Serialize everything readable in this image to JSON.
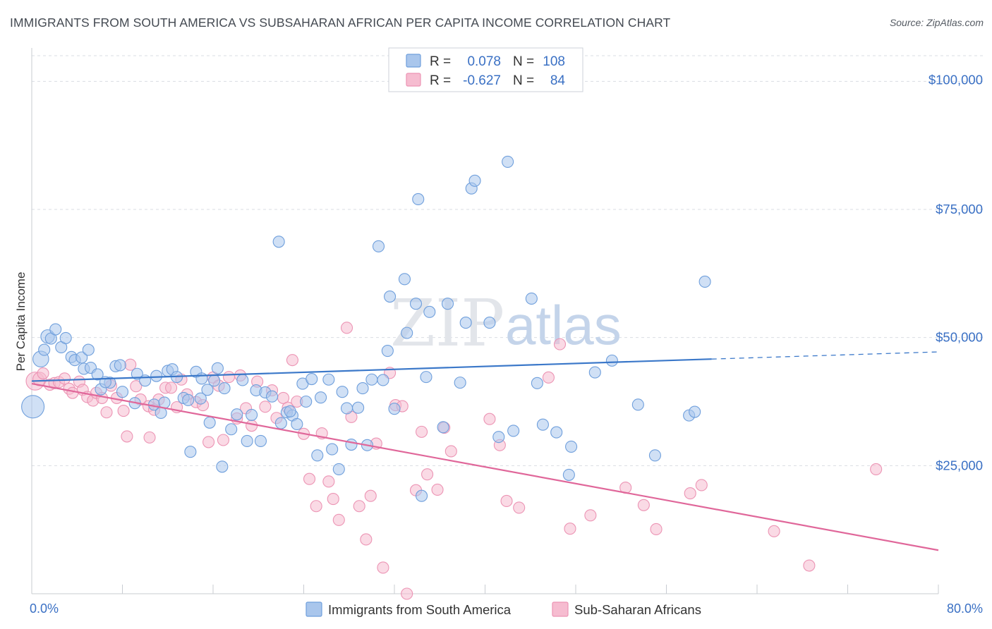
{
  "title": "IMMIGRANTS FROM SOUTH AMERICA VS SUBSAHARAN AFRICAN PER CAPITA INCOME CORRELATION CHART",
  "source": "Source: ZipAtlas.com",
  "watermark": {
    "zip": "ZIP",
    "atlas": "atlas"
  },
  "colors": {
    "blue": "#3b78c9",
    "blue_fill": "#a9c6ec",
    "blue_stroke": "#6f9fdc",
    "pink": "#e0679a",
    "pink_fill": "#f6bcd0",
    "pink_stroke": "#ec94b4",
    "grid": "#d9dde3",
    "axis_text": "#3a70c4"
  },
  "legend": {
    "series": [
      {
        "r_label": "R =",
        "r_value": "0.078",
        "n_label": "N =",
        "n_value": "108"
      },
      {
        "r_label": "R =",
        "r_value": "-0.627",
        "n_label": "N =",
        "n_value": "84"
      }
    ]
  },
  "chart_data": {
    "type": "scatter",
    "title": "IMMIGRANTS FROM SOUTH AMERICA VS SUBSAHARAN AFRICAN PER CAPITA INCOME CORRELATION CHART",
    "xlabel": "",
    "ylabel": "Per Capita Income",
    "xlim": [
      0,
      80
    ],
    "ylim": [
      0,
      105000
    ],
    "x_tick_labels": [
      "0.0%",
      "80.0%"
    ],
    "y_ticks": [
      25000,
      50000,
      75000,
      100000
    ],
    "y_tick_labels": [
      "$25,000",
      "$50,000",
      "$75,000",
      "$100,000"
    ],
    "series": [
      {
        "name": "Immigrants from South America",
        "color": "blue",
        "r": 0.078,
        "n": 108,
        "trend": {
          "x0": 0,
          "y0": 41500,
          "x1": 60,
          "y1": 45800,
          "dash_to_x": 80,
          "dash_y": 47200
        },
        "points": [
          [
            0.1,
            36500,
            20
          ],
          [
            0.8,
            45800,
            14
          ],
          [
            1.1,
            47600,
            10
          ],
          [
            1.4,
            50200,
            12
          ],
          [
            1.7,
            49800,
            10
          ],
          [
            2.1,
            51600,
            10
          ],
          [
            2.6,
            48100,
            10
          ],
          [
            3.0,
            49900,
            10
          ],
          [
            3.5,
            46200,
            10
          ],
          [
            3.8,
            45600,
            10
          ],
          [
            4.4,
            46100,
            10
          ],
          [
            5.0,
            47600,
            10
          ],
          [
            4.6,
            43900,
            10
          ],
          [
            5.2,
            44100,
            10
          ],
          [
            5.8,
            42800,
            10
          ],
          [
            6.1,
            39900,
            10
          ],
          [
            6.9,
            41200,
            10
          ],
          [
            6.5,
            41300,
            10
          ],
          [
            7.4,
            44400,
            10
          ],
          [
            7.8,
            44600,
            10
          ],
          [
            8.0,
            39400,
            10
          ],
          [
            9.3,
            42900,
            10
          ],
          [
            9.1,
            37200,
            10
          ],
          [
            10.0,
            41600,
            10
          ],
          [
            10.8,
            36900,
            10
          ],
          [
            11.4,
            35300,
            10
          ],
          [
            11.7,
            37300,
            10
          ],
          [
            12.0,
            43500,
            10
          ],
          [
            12.4,
            43800,
            10
          ],
          [
            12.8,
            42300,
            10
          ],
          [
            13.4,
            38200,
            10
          ],
          [
            13.8,
            37800,
            10
          ],
          [
            14.0,
            27700,
            10
          ],
          [
            14.5,
            43300,
            10
          ],
          [
            15.0,
            42000,
            10
          ],
          [
            15.5,
            39800,
            10
          ],
          [
            15.7,
            33400,
            10
          ],
          [
            16.1,
            41600,
            10
          ],
          [
            16.4,
            44000,
            10
          ],
          [
            17.0,
            40100,
            10
          ],
          [
            16.8,
            24800,
            10
          ],
          [
            17.6,
            32100,
            10
          ],
          [
            18.1,
            35000,
            10
          ],
          [
            18.6,
            41700,
            10
          ],
          [
            19.0,
            29800,
            10
          ],
          [
            19.4,
            34900,
            10
          ],
          [
            19.8,
            39700,
            10
          ],
          [
            20.2,
            29800,
            10
          ],
          [
            20.6,
            39300,
            10
          ],
          [
            21.2,
            38500,
            10
          ],
          [
            22.0,
            33300,
            10
          ],
          [
            21.8,
            68700,
            10
          ],
          [
            22.5,
            35400,
            10
          ],
          [
            23.0,
            34800,
            10
          ],
          [
            23.4,
            33100,
            10
          ],
          [
            23.9,
            41000,
            10
          ],
          [
            24.7,
            41900,
            10
          ],
          [
            25.2,
            27000,
            10
          ],
          [
            25.5,
            38300,
            10
          ],
          [
            26.2,
            41800,
            10
          ],
          [
            26.5,
            28200,
            10
          ],
          [
            27.1,
            24300,
            10
          ],
          [
            27.4,
            39400,
            10
          ],
          [
            27.8,
            36200,
            10
          ],
          [
            28.2,
            29100,
            10
          ],
          [
            28.8,
            36300,
            10
          ],
          [
            29.2,
            40100,
            10
          ],
          [
            29.6,
            29000,
            10
          ],
          [
            30.0,
            41800,
            10
          ],
          [
            30.6,
            67800,
            10
          ],
          [
            31.0,
            41700,
            10
          ],
          [
            31.4,
            47400,
            10
          ],
          [
            31.6,
            58000,
            10
          ],
          [
            32.0,
            36100,
            10
          ],
          [
            32.9,
            61400,
            10
          ],
          [
            33.1,
            50900,
            10
          ],
          [
            33.9,
            56600,
            10
          ],
          [
            34.1,
            77000,
            10
          ],
          [
            34.4,
            19100,
            10
          ],
          [
            34.8,
            42300,
            10
          ],
          [
            35.1,
            55000,
            10
          ],
          [
            36.3,
            32500,
            10
          ],
          [
            36.7,
            56600,
            10
          ],
          [
            37.8,
            41200,
            10
          ],
          [
            38.3,
            52900,
            10
          ],
          [
            38.8,
            79100,
            10
          ],
          [
            39.1,
            80600,
            10
          ],
          [
            40.4,
            52900,
            10
          ],
          [
            41.2,
            30600,
            10
          ],
          [
            42.0,
            84300,
            10
          ],
          [
            42.5,
            31800,
            10
          ],
          [
            44.1,
            57600,
            10
          ],
          [
            44.6,
            41100,
            10
          ],
          [
            45.1,
            33000,
            10
          ],
          [
            46.3,
            31500,
            10
          ],
          [
            47.4,
            23200,
            10
          ],
          [
            47.6,
            28700,
            10
          ],
          [
            49.7,
            43200,
            10
          ],
          [
            51.2,
            45500,
            10
          ],
          [
            53.5,
            36900,
            10
          ],
          [
            55.0,
            27000,
            10
          ],
          [
            58.0,
            34800,
            10
          ],
          [
            58.5,
            35500,
            10
          ],
          [
            59.4,
            60900,
            10
          ],
          [
            22.8,
            35600,
            10
          ],
          [
            24.2,
            37500,
            10
          ],
          [
            14.9,
            38100,
            10
          ],
          [
            11.0,
            42500,
            10
          ]
        ]
      },
      {
        "name": "Sub-Saharan Africans",
        "color": "pink",
        "r": -0.627,
        "n": 84,
        "trend": {
          "x0": 0,
          "y0": 41000,
          "x1": 80,
          "y1": 8500
        },
        "points": [
          [
            0.3,
            41500,
            16
          ],
          [
            0.7,
            41900,
            12
          ],
          [
            1.0,
            43000,
            10
          ],
          [
            1.6,
            40800,
            10
          ],
          [
            2.0,
            41100,
            10
          ],
          [
            2.4,
            41300,
            10
          ],
          [
            2.9,
            42000,
            10
          ],
          [
            3.3,
            40000,
            10
          ],
          [
            3.6,
            39200,
            10
          ],
          [
            4.2,
            41400,
            10
          ],
          [
            4.5,
            39800,
            10
          ],
          [
            4.9,
            38400,
            10
          ],
          [
            5.4,
            37700,
            10
          ],
          [
            5.7,
            39200,
            10
          ],
          [
            6.2,
            38200,
            10
          ],
          [
            6.6,
            35400,
            10
          ],
          [
            7.0,
            40600,
            10
          ],
          [
            7.5,
            38200,
            10
          ],
          [
            8.1,
            35700,
            10
          ],
          [
            8.4,
            30700,
            10
          ],
          [
            8.7,
            44700,
            10
          ],
          [
            9.2,
            40500,
            10
          ],
          [
            9.6,
            37900,
            10
          ],
          [
            10.3,
            36600,
            10
          ],
          [
            10.4,
            30500,
            10
          ],
          [
            10.8,
            35900,
            10
          ],
          [
            11.2,
            37900,
            10
          ],
          [
            11.8,
            40200,
            10
          ],
          [
            12.3,
            40200,
            10
          ],
          [
            12.8,
            36400,
            10
          ],
          [
            13.2,
            41800,
            10
          ],
          [
            13.7,
            38900,
            10
          ],
          [
            14.5,
            37400,
            10
          ],
          [
            15.1,
            36800,
            10
          ],
          [
            15.6,
            29600,
            10
          ],
          [
            16.0,
            42200,
            10
          ],
          [
            16.5,
            40600,
            10
          ],
          [
            16.9,
            30000,
            10
          ],
          [
            17.4,
            42300,
            10
          ],
          [
            18.1,
            34200,
            10
          ],
          [
            18.4,
            42600,
            10
          ],
          [
            18.9,
            36200,
            10
          ],
          [
            19.4,
            32800,
            10
          ],
          [
            19.9,
            41400,
            10
          ],
          [
            20.6,
            36500,
            10
          ],
          [
            21.2,
            39700,
            10
          ],
          [
            21.6,
            34300,
            10
          ],
          [
            22.2,
            38200,
            10
          ],
          [
            22.6,
            36300,
            10
          ],
          [
            23.0,
            45600,
            10
          ],
          [
            23.4,
            37500,
            10
          ],
          [
            24.0,
            31200,
            10
          ],
          [
            24.5,
            22400,
            10
          ],
          [
            25.1,
            17100,
            10
          ],
          [
            25.6,
            31300,
            10
          ],
          [
            26.2,
            21900,
            10
          ],
          [
            26.6,
            18500,
            10
          ],
          [
            27.1,
            14400,
            10
          ],
          [
            27.8,
            51900,
            10
          ],
          [
            28.2,
            34500,
            10
          ],
          [
            28.9,
            17100,
            10
          ],
          [
            29.5,
            10600,
            10
          ],
          [
            29.9,
            19100,
            10
          ],
          [
            30.4,
            29300,
            10
          ],
          [
            31.0,
            5100,
            10
          ],
          [
            31.6,
            43100,
            10
          ],
          [
            32.1,
            36800,
            10
          ],
          [
            32.7,
            36600,
            10
          ],
          [
            33.1,
            0,
            10
          ],
          [
            33.9,
            20200,
            10
          ],
          [
            34.4,
            31600,
            10
          ],
          [
            34.9,
            23300,
            10
          ],
          [
            35.8,
            20300,
            10
          ],
          [
            36.4,
            32400,
            10
          ],
          [
            37.0,
            27800,
            10
          ],
          [
            40.4,
            34100,
            10
          ],
          [
            41.3,
            29000,
            10
          ],
          [
            41.9,
            18100,
            10
          ],
          [
            43.0,
            16800,
            10
          ],
          [
            45.6,
            42200,
            10
          ],
          [
            46.6,
            48700,
            10
          ],
          [
            47.5,
            12700,
            10
          ],
          [
            49.3,
            15300,
            10
          ],
          [
            52.4,
            20700,
            10
          ]
        ]
      }
    ],
    "extra_pink_points": [
      [
        54.0,
        17300,
        10
      ],
      [
        55.1,
        12600,
        10
      ],
      [
        58.1,
        19600,
        10
      ],
      [
        59.1,
        21200,
        10
      ],
      [
        65.5,
        12200,
        10
      ],
      [
        68.6,
        5500,
        10
      ],
      [
        74.5,
        24300,
        10
      ]
    ]
  }
}
